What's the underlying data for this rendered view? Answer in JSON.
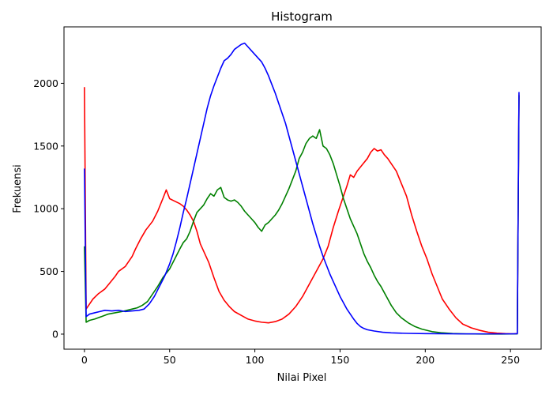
{
  "chart_data": {
    "type": "line",
    "title": "Histogram",
    "xlabel": "Nilai Pixel",
    "ylabel": "Frekuensi",
    "xlim": [
      -12,
      268
    ],
    "ylim": [
      -120,
      2450
    ],
    "xticks": [
      0,
      50,
      100,
      150,
      200,
      250
    ],
    "yticks": [
      0,
      500,
      1000,
      1500,
      2000
    ],
    "grid": false,
    "legend": "none",
    "series": [
      {
        "color": "#ff0000",
        "points": [
          [
            0,
            1970
          ],
          [
            1,
            200
          ],
          [
            3,
            240
          ],
          [
            5,
            280
          ],
          [
            8,
            320
          ],
          [
            12,
            360
          ],
          [
            15,
            410
          ],
          [
            18,
            460
          ],
          [
            20,
            500
          ],
          [
            24,
            540
          ],
          [
            28,
            620
          ],
          [
            30,
            680
          ],
          [
            33,
            760
          ],
          [
            36,
            830
          ],
          [
            40,
            900
          ],
          [
            43,
            980
          ],
          [
            46,
            1080
          ],
          [
            48,
            1150
          ],
          [
            50,
            1080
          ],
          [
            53,
            1060
          ],
          [
            56,
            1040
          ],
          [
            58,
            1020
          ],
          [
            60,
            990
          ],
          [
            62,
            950
          ],
          [
            64,
            900
          ],
          [
            66,
            820
          ],
          [
            68,
            720
          ],
          [
            70,
            660
          ],
          [
            73,
            570
          ],
          [
            76,
            450
          ],
          [
            79,
            340
          ],
          [
            82,
            270
          ],
          [
            85,
            220
          ],
          [
            88,
            180
          ],
          [
            92,
            150
          ],
          [
            96,
            120
          ],
          [
            100,
            105
          ],
          [
            104,
            95
          ],
          [
            108,
            90
          ],
          [
            112,
            100
          ],
          [
            116,
            120
          ],
          [
            120,
            160
          ],
          [
            124,
            220
          ],
          [
            128,
            300
          ],
          [
            132,
            400
          ],
          [
            136,
            500
          ],
          [
            140,
            600
          ],
          [
            143,
            700
          ],
          [
            146,
            850
          ],
          [
            149,
            980
          ],
          [
            152,
            1100
          ],
          [
            154,
            1180
          ],
          [
            156,
            1270
          ],
          [
            158,
            1250
          ],
          [
            160,
            1300
          ],
          [
            163,
            1350
          ],
          [
            166,
            1400
          ],
          [
            168,
            1450
          ],
          [
            170,
            1480
          ],
          [
            172,
            1460
          ],
          [
            174,
            1470
          ],
          [
            176,
            1430
          ],
          [
            178,
            1400
          ],
          [
            180,
            1360
          ],
          [
            183,
            1300
          ],
          [
            186,
            1200
          ],
          [
            189,
            1100
          ],
          [
            192,
            950
          ],
          [
            195,
            820
          ],
          [
            198,
            700
          ],
          [
            201,
            600
          ],
          [
            204,
            480
          ],
          [
            207,
            380
          ],
          [
            210,
            280
          ],
          [
            214,
            200
          ],
          [
            218,
            130
          ],
          [
            222,
            80
          ],
          [
            227,
            50
          ],
          [
            232,
            30
          ],
          [
            237,
            15
          ],
          [
            242,
            8
          ],
          [
            247,
            4
          ],
          [
            252,
            2
          ],
          [
            254,
            5
          ],
          [
            255,
            1910
          ]
        ]
      },
      {
        "color": "#008000",
        "points": [
          [
            0,
            700
          ],
          [
            1,
            95
          ],
          [
            3,
            110
          ],
          [
            6,
            120
          ],
          [
            10,
            140
          ],
          [
            14,
            160
          ],
          [
            18,
            170
          ],
          [
            22,
            180
          ],
          [
            25,
            190
          ],
          [
            28,
            200
          ],
          [
            31,
            210
          ],
          [
            34,
            230
          ],
          [
            37,
            260
          ],
          [
            40,
            320
          ],
          [
            43,
            380
          ],
          [
            46,
            450
          ],
          [
            50,
            520
          ],
          [
            53,
            600
          ],
          [
            56,
            680
          ],
          [
            58,
            730
          ],
          [
            60,
            760
          ],
          [
            62,
            820
          ],
          [
            64,
            900
          ],
          [
            66,
            970
          ],
          [
            68,
            1000
          ],
          [
            70,
            1030
          ],
          [
            72,
            1080
          ],
          [
            74,
            1120
          ],
          [
            76,
            1100
          ],
          [
            78,
            1150
          ],
          [
            80,
            1170
          ],
          [
            82,
            1090
          ],
          [
            84,
            1070
          ],
          [
            86,
            1060
          ],
          [
            88,
            1070
          ],
          [
            90,
            1050
          ],
          [
            92,
            1020
          ],
          [
            94,
            980
          ],
          [
            96,
            950
          ],
          [
            98,
            920
          ],
          [
            100,
            890
          ],
          [
            102,
            850
          ],
          [
            104,
            820
          ],
          [
            106,
            870
          ],
          [
            108,
            890
          ],
          [
            110,
            920
          ],
          [
            112,
            950
          ],
          [
            114,
            990
          ],
          [
            116,
            1040
          ],
          [
            118,
            1100
          ],
          [
            120,
            1160
          ],
          [
            122,
            1230
          ],
          [
            124,
            1300
          ],
          [
            126,
            1400
          ],
          [
            128,
            1450
          ],
          [
            130,
            1520
          ],
          [
            132,
            1560
          ],
          [
            134,
            1580
          ],
          [
            136,
            1560
          ],
          [
            138,
            1630
          ],
          [
            140,
            1500
          ],
          [
            142,
            1480
          ],
          [
            144,
            1430
          ],
          [
            146,
            1360
          ],
          [
            148,
            1270
          ],
          [
            150,
            1180
          ],
          [
            152,
            1080
          ],
          [
            154,
            1000
          ],
          [
            156,
            920
          ],
          [
            158,
            860
          ],
          [
            160,
            800
          ],
          [
            162,
            720
          ],
          [
            164,
            640
          ],
          [
            166,
            580
          ],
          [
            168,
            530
          ],
          [
            170,
            470
          ],
          [
            172,
            420
          ],
          [
            174,
            380
          ],
          [
            176,
            330
          ],
          [
            178,
            280
          ],
          [
            180,
            230
          ],
          [
            183,
            170
          ],
          [
            186,
            130
          ],
          [
            190,
            90
          ],
          [
            194,
            60
          ],
          [
            198,
            40
          ],
          [
            204,
            20
          ],
          [
            210,
            10
          ],
          [
            216,
            5
          ],
          [
            224,
            2
          ],
          [
            234,
            1
          ],
          [
            244,
            1
          ],
          [
            254,
            2
          ],
          [
            255,
            1900
          ]
        ]
      },
      {
        "color": "#0000ff",
        "points": [
          [
            0,
            1320
          ],
          [
            1,
            140
          ],
          [
            3,
            160
          ],
          [
            6,
            170
          ],
          [
            9,
            180
          ],
          [
            12,
            190
          ],
          [
            16,
            185
          ],
          [
            20,
            190
          ],
          [
            24,
            180
          ],
          [
            28,
            185
          ],
          [
            32,
            190
          ],
          [
            35,
            200
          ],
          [
            38,
            240
          ],
          [
            41,
            300
          ],
          [
            44,
            380
          ],
          [
            47,
            460
          ],
          [
            50,
            560
          ],
          [
            52,
            640
          ],
          [
            54,
            740
          ],
          [
            56,
            850
          ],
          [
            58,
            970
          ],
          [
            60,
            1080
          ],
          [
            62,
            1200
          ],
          [
            64,
            1320
          ],
          [
            66,
            1440
          ],
          [
            68,
            1560
          ],
          [
            70,
            1680
          ],
          [
            72,
            1800
          ],
          [
            74,
            1900
          ],
          [
            76,
            1980
          ],
          [
            78,
            2050
          ],
          [
            80,
            2120
          ],
          [
            82,
            2180
          ],
          [
            84,
            2200
          ],
          [
            86,
            2230
          ],
          [
            88,
            2270
          ],
          [
            90,
            2290
          ],
          [
            92,
            2310
          ],
          [
            94,
            2320
          ],
          [
            96,
            2290
          ],
          [
            98,
            2260
          ],
          [
            100,
            2230
          ],
          [
            102,
            2200
          ],
          [
            104,
            2170
          ],
          [
            106,
            2120
          ],
          [
            108,
            2060
          ],
          [
            110,
            1990
          ],
          [
            112,
            1920
          ],
          [
            114,
            1840
          ],
          [
            116,
            1760
          ],
          [
            118,
            1680
          ],
          [
            120,
            1580
          ],
          [
            122,
            1480
          ],
          [
            124,
            1380
          ],
          [
            126,
            1280
          ],
          [
            128,
            1180
          ],
          [
            130,
            1080
          ],
          [
            132,
            980
          ],
          [
            134,
            880
          ],
          [
            136,
            790
          ],
          [
            138,
            700
          ],
          [
            140,
            620
          ],
          [
            142,
            550
          ],
          [
            144,
            480
          ],
          [
            146,
            420
          ],
          [
            148,
            360
          ],
          [
            150,
            300
          ],
          [
            152,
            250
          ],
          [
            154,
            200
          ],
          [
            156,
            160
          ],
          [
            158,
            120
          ],
          [
            160,
            85
          ],
          [
            162,
            60
          ],
          [
            164,
            45
          ],
          [
            166,
            35
          ],
          [
            170,
            25
          ],
          [
            175,
            15
          ],
          [
            180,
            10
          ],
          [
            185,
            8
          ],
          [
            190,
            6
          ],
          [
            200,
            4
          ],
          [
            210,
            3
          ],
          [
            220,
            2
          ],
          [
            230,
            2
          ],
          [
            240,
            2
          ],
          [
            250,
            2
          ],
          [
            254,
            3
          ],
          [
            255,
            1930
          ]
        ]
      }
    ]
  }
}
